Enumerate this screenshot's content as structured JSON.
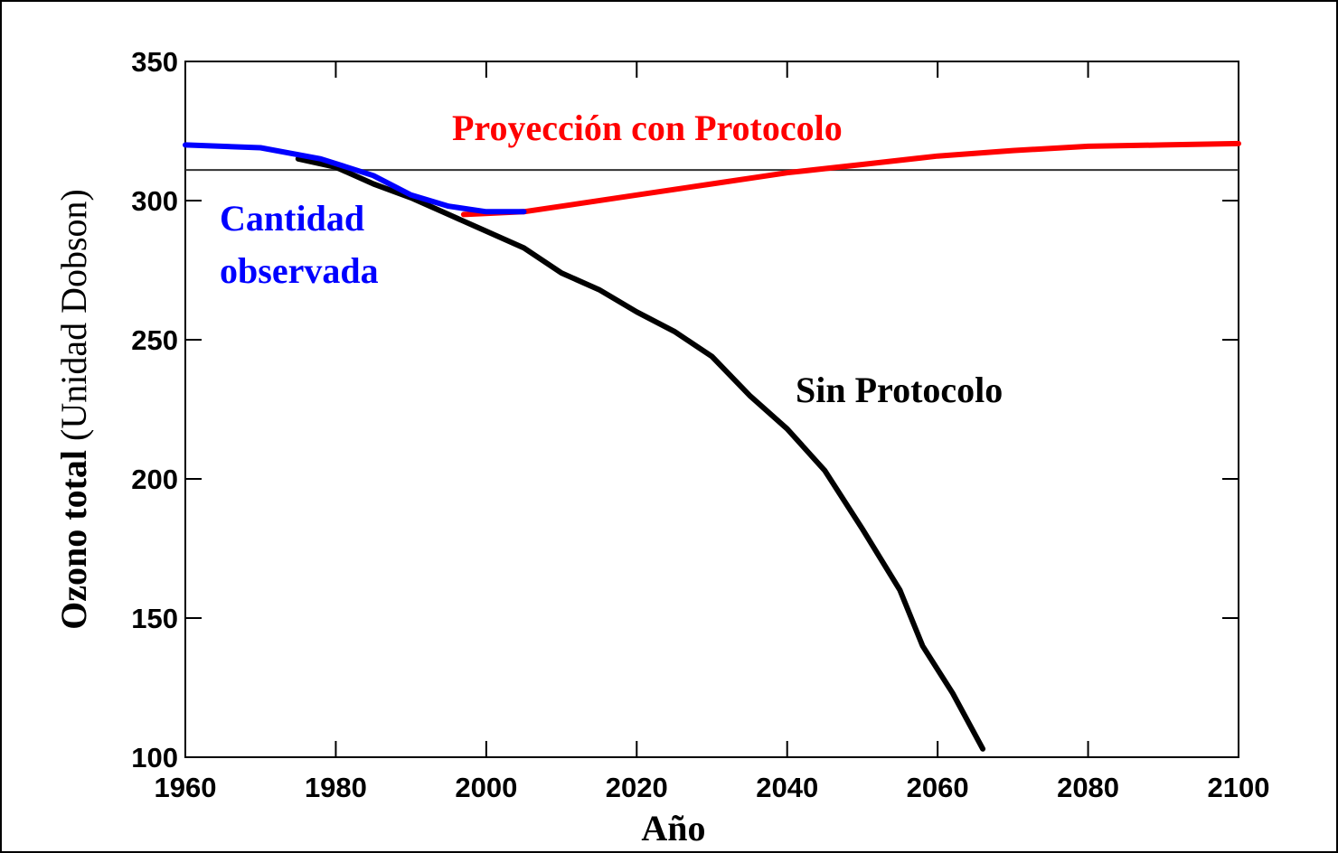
{
  "chart_data": {
    "type": "line",
    "xlabel": "Año",
    "ylabel_bold": "Ozono total",
    "ylabel_normal": "(Unidad Dobson)",
    "xlim": [
      1960,
      2100
    ],
    "xticks": [
      1960,
      1980,
      2000,
      2020,
      2040,
      2060,
      2080,
      2100
    ],
    "ylim": [
      100,
      350
    ],
    "yticks": [
      100,
      150,
      200,
      250,
      300,
      350
    ],
    "reference_line": 311,
    "series": [
      {
        "name": "Cantidad observada",
        "color": "#0000ff",
        "x": [
          1960,
          1970,
          1978,
          1985,
          1990,
          1995,
          2000,
          2005
        ],
        "values": [
          320,
          319,
          315,
          309,
          302,
          298,
          296,
          296
        ]
      },
      {
        "name": "Proyección con  Protocolo",
        "color": "#ff0000",
        "x": [
          1997,
          2005,
          2010,
          2020,
          2030,
          2040,
          2050,
          2060,
          2070,
          2080,
          2090,
          2100
        ],
        "values": [
          295,
          296,
          298,
          302,
          306,
          310,
          313,
          316,
          318,
          319.5,
          320,
          320.5
        ]
      },
      {
        "name": "Sin Protocolo",
        "color": "#000000",
        "x": [
          1975,
          1980,
          1985,
          1990,
          1995,
          2000,
          2005,
          2010,
          2015,
          2020,
          2025,
          2030,
          2035,
          2040,
          2045,
          2050,
          2055,
          2058,
          2062,
          2066
        ],
        "values": [
          315,
          312,
          306,
          301,
          295,
          289,
          283,
          274,
          268,
          260,
          253,
          244,
          230,
          218,
          203,
          182,
          160,
          140,
          123,
          103
        ]
      }
    ]
  }
}
